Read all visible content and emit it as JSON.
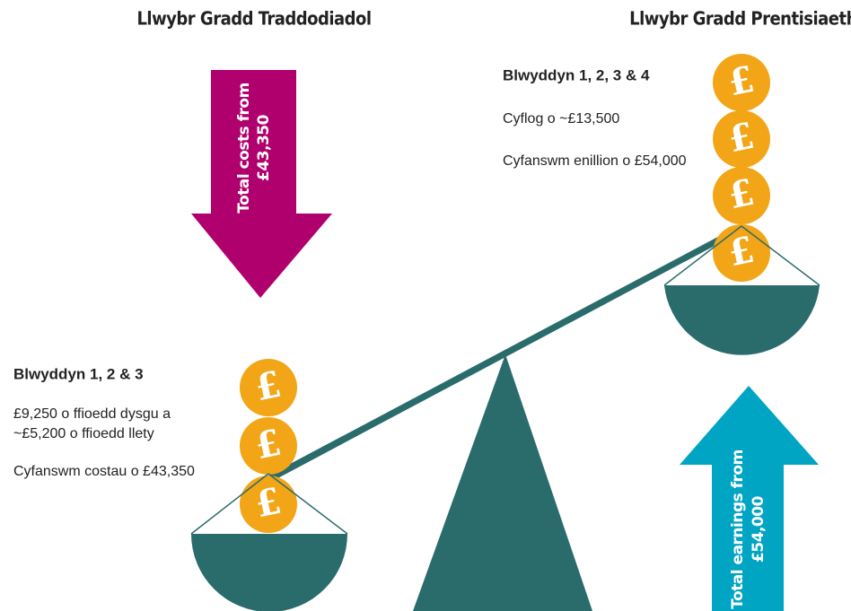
{
  "left": {
    "heading": "Llwybr Gradd Traddodiadol",
    "arrow_label": [
      "Total costs from",
      "£43,350"
    ],
    "title": "Blwyddyn 1, 2 & 3",
    "lines": [
      "£9,250 o ffioedd dysgu a",
      "~£5,200 o ffioedd llety",
      "Cyfanswm costau o £43,350"
    ]
  },
  "right": {
    "heading": "Llwybr Gradd Prentisiaeth",
    "arrow_label": [
      "Total earnings from",
      "£54,000"
    ],
    "title": "Blwyddyn 1, 2, 3 & 4",
    "lines": [
      "Cyflog o ~£13,500",
      "Cyfanswm enillion o £54,000"
    ]
  },
  "coin_symbol": "£"
}
